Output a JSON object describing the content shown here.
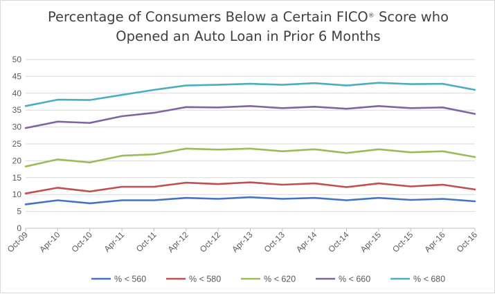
{
  "chart_data": {
    "type": "line",
    "title": {
      "line1_pre": "Percentage of Consumers Below a Certain FICO",
      "line1_sup": "®",
      "line1_post": " Score who",
      "line2": "Opened an Auto Loan in Prior 6 Months"
    },
    "xlabel": "",
    "ylabel": "",
    "ylim": [
      0,
      50
    ],
    "yticks": [
      0,
      5,
      10,
      15,
      20,
      25,
      30,
      35,
      40,
      45,
      50
    ],
    "grid": true,
    "legend_position": "bottom",
    "categories": [
      "Oct-09",
      "Apr-10",
      "Oct-10",
      "Apr-11",
      "Oct-11",
      "Apr-12",
      "Oct-12",
      "Apr-13",
      "Oct-13",
      "Apr-14",
      "Oct-14",
      "Apr-15",
      "Oct-15",
      "Apr-16",
      "Oct-16"
    ],
    "series": [
      {
        "name": "% < 560",
        "color": "#4472c4",
        "values": [
          7.1,
          8.3,
          7.4,
          8.3,
          8.3,
          9.0,
          8.7,
          9.2,
          8.7,
          9.0,
          8.3,
          9.0,
          8.4,
          8.7,
          8.0
        ]
      },
      {
        "name": "% < 580",
        "color": "#c0504d",
        "values": [
          10.3,
          12.0,
          10.9,
          12.3,
          12.3,
          13.5,
          13.1,
          13.6,
          12.9,
          13.3,
          12.2,
          13.3,
          12.4,
          12.9,
          11.5
        ]
      },
      {
        "name": "% < 620",
        "color": "#9bbb59",
        "values": [
          18.3,
          20.4,
          19.5,
          21.5,
          21.9,
          23.6,
          23.3,
          23.6,
          22.8,
          23.4,
          22.3,
          23.4,
          22.5,
          22.8,
          21.1
        ]
      },
      {
        "name": "% < 660",
        "color": "#8064a2",
        "values": [
          29.7,
          31.6,
          31.2,
          33.2,
          34.2,
          35.9,
          35.8,
          36.2,
          35.6,
          36.0,
          35.4,
          36.2,
          35.6,
          35.8,
          33.9
        ]
      },
      {
        "name": "% < 680",
        "color": "#4bacc6",
        "values": [
          36.2,
          38.1,
          38.0,
          39.5,
          41.0,
          42.3,
          42.5,
          42.8,
          42.5,
          43.0,
          42.3,
          43.1,
          42.7,
          42.8,
          41.0
        ]
      }
    ]
  }
}
